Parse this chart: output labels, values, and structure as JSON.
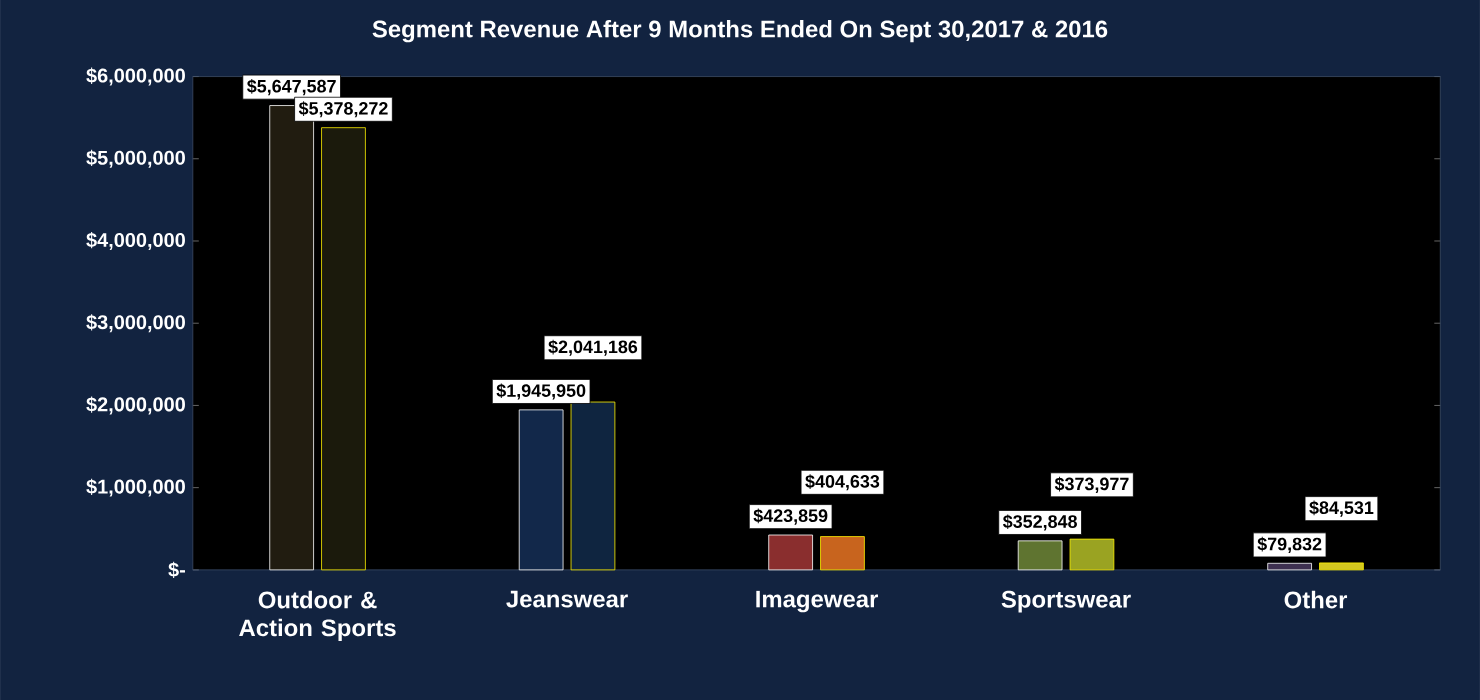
{
  "chart_data": {
    "type": "bar",
    "title": "Segment Revenue After 9 Months Ended On Sept 30,2017 & 2016",
    "categories": [
      "Outdoor & Action Sports",
      "Jeanswear",
      "Imagewear",
      "Sportswear",
      "Other"
    ],
    "series": [
      {
        "colors": [
          "#211c10",
          "#12284a",
          "#8a2e2e",
          "#5f7430",
          "#3e3050"
        ],
        "values": [
          5647587,
          1945950,
          423859,
          352848,
          79832
        ],
        "value_labels": [
          "$5,647,587",
          "$1,945,950",
          "$423,859",
          "$352,848",
          "$79,832"
        ]
      },
      {
        "colors": [
          "#1b1a0c",
          "#0f2540",
          "#c8641e",
          "#9aa322",
          "#d4c820"
        ],
        "values": [
          5378272,
          2041186,
          404633,
          373977,
          84531
        ],
        "value_labels": [
          "$5,378,272",
          "$2,041,186",
          "$404,633",
          "$373,977",
          "$84,531"
        ]
      }
    ],
    "ylim": [
      0,
      6000000
    ],
    "yticks": [
      {
        "value": 0,
        "label": "$-"
      },
      {
        "value": 1000000,
        "label": "$1,000,000"
      },
      {
        "value": 2000000,
        "label": "$2,000,000"
      },
      {
        "value": 3000000,
        "label": "$3,000,000"
      },
      {
        "value": 4000000,
        "label": "$4,000,000"
      },
      {
        "value": 5000000,
        "label": "$5,000,000"
      },
      {
        "value": 6000000,
        "label": "$6,000,000"
      }
    ]
  }
}
